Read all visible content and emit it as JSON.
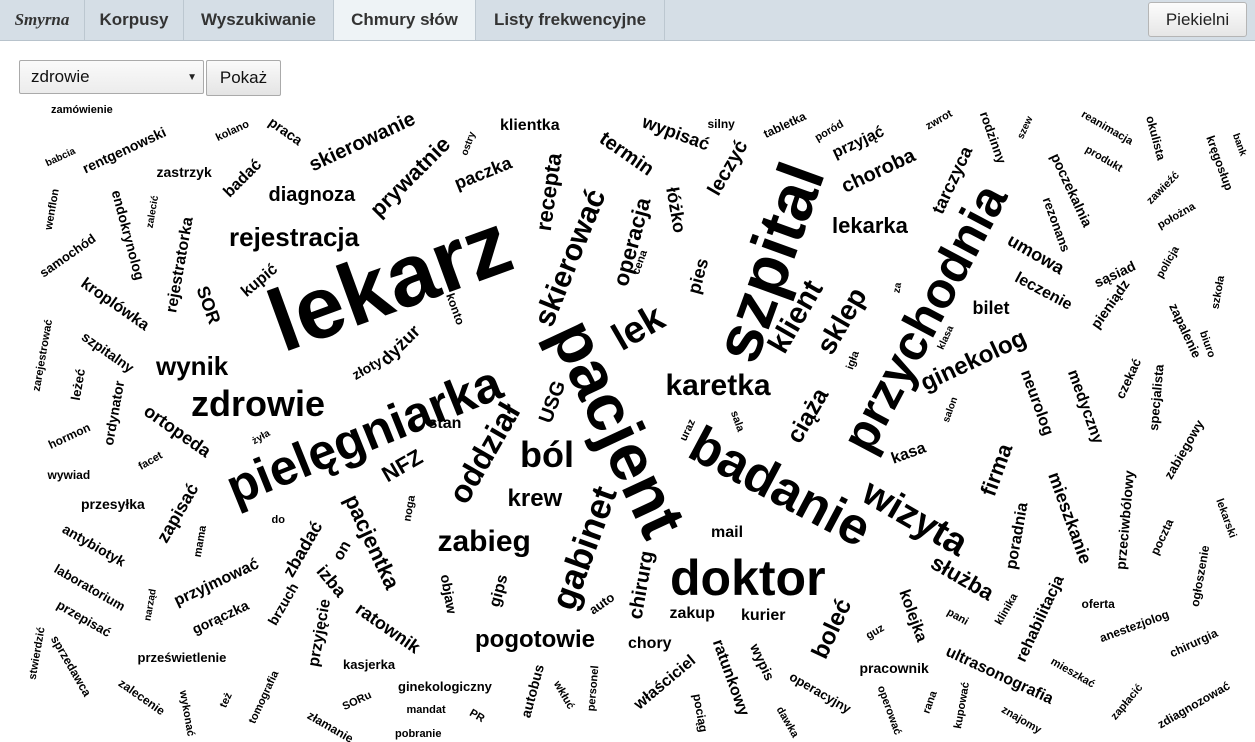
{
  "header": {
    "brand": "Smyrna",
    "tabs": [
      {
        "label": "Korpusy"
      },
      {
        "label": "Wyszukiwanie"
      },
      {
        "label": "Chmury słów"
      },
      {
        "label": "Listy frekwencyjne"
      }
    ],
    "active_tab": "Chmury słów",
    "user_button": "Piekielni"
  },
  "controls": {
    "select_value": "zdrowie",
    "show_button": "Pokaż"
  },
  "cloud": {
    "words": [
      "lekarz",
      "pacjent",
      "szpital",
      "przychodnia",
      "pielęgniarka",
      "badanie",
      "doktor",
      "wizyta",
      "zdrowie",
      "gabinet",
      "oddział",
      "lek",
      "skierować",
      "ból",
      "karetka",
      "rejestracja",
      "zabieg",
      "pogotowie",
      "wynik",
      "klient",
      "sklep",
      "krew",
      "diagnoza",
      "recepta",
      "operacja",
      "lekarka",
      "ciąża",
      "ginekolog",
      "pacjentka",
      "NFZ",
      "firma",
      "służba",
      "boleć",
      "prywatnie",
      "skierowanie",
      "choroba",
      "leczyć",
      "termin",
      "wypisać",
      "tarczyca",
      "klientka",
      "paczka",
      "łóżko",
      "bilet",
      "umowa",
      "leczenie",
      "neurolog",
      "medyczny",
      "mieszkanie",
      "poradnia",
      "przeciwbólowy",
      "ortopeda",
      "zapisać",
      "zbadać",
      "izba",
      "ratownik",
      "przyjęcie",
      "chirurg",
      "kolejka",
      "rehabilitacja",
      "ultrasonografia",
      "mail",
      "zakup",
      "kurier",
      "chory",
      "ratunkowy",
      "wypis",
      "właściciel",
      "autobus",
      "gips",
      "objaw",
      "pacjentka",
      "dyżur",
      "złoty",
      "stan",
      "kasa",
      "pies",
      "kupić",
      "rejestratorka",
      "SOR",
      "kroplówka",
      "endokrynolog",
      "zastrzyk",
      "rentgenowski",
      "badać",
      "praca",
      "kolano",
      "babcia",
      "zamówienie",
      "wenflon",
      "zalecić",
      "samochód",
      "szpitalny",
      "zarejestrować",
      "leżeć",
      "ordynator",
      "hormon",
      "wywiad",
      "facet",
      "żyła",
      "przesyłka",
      "antybiotyk",
      "laboratorium",
      "przepisać",
      "narząd",
      "mama",
      "przyjmować",
      "gorączka",
      "brzuch",
      "stwierdzić",
      "sprzedawca",
      "zalecenie",
      "wykonać",
      "też",
      "tomografia",
      "prześwietlenie",
      "kasjerka",
      "SORu",
      "złamanie",
      "mandat",
      "pobranie",
      "PR",
      "ginekologiczny",
      "wkłuć",
      "personel",
      "pociąg",
      "auto",
      "dawka",
      "operacyjny",
      "operować",
      "rana",
      "kupować",
      "znajomy",
      "pracownik",
      "guz",
      "pani",
      "klinika",
      "oferta",
      "anestezjolog",
      "mieszkać",
      "zapłacić",
      "zdiagnozować",
      "chirurgia",
      "ogłoszenie",
      "poczta",
      "lekarski",
      "zabiegowy",
      "specjalista",
      "czekać",
      "biuro",
      "zapalenie",
      "szkoła",
      "policja",
      "pieniądz",
      "sąsiad",
      "rezonans",
      "zawieźć",
      "położna",
      "produkt",
      "kręgosłup",
      "bank",
      "okulista",
      "reanimacja",
      "szew",
      "poczekalnia",
      "rodzinny",
      "zwrot",
      "przyjąć",
      "poród",
      "tabletka",
      "silny",
      "ostry",
      "uraz",
      "sala",
      "igła",
      "klasa",
      "salon",
      "za",
      "cena",
      "konto",
      "USG",
      "noga",
      "do",
      "on",
      "rodzinny",
      "przez",
      "auto"
    ]
  }
}
